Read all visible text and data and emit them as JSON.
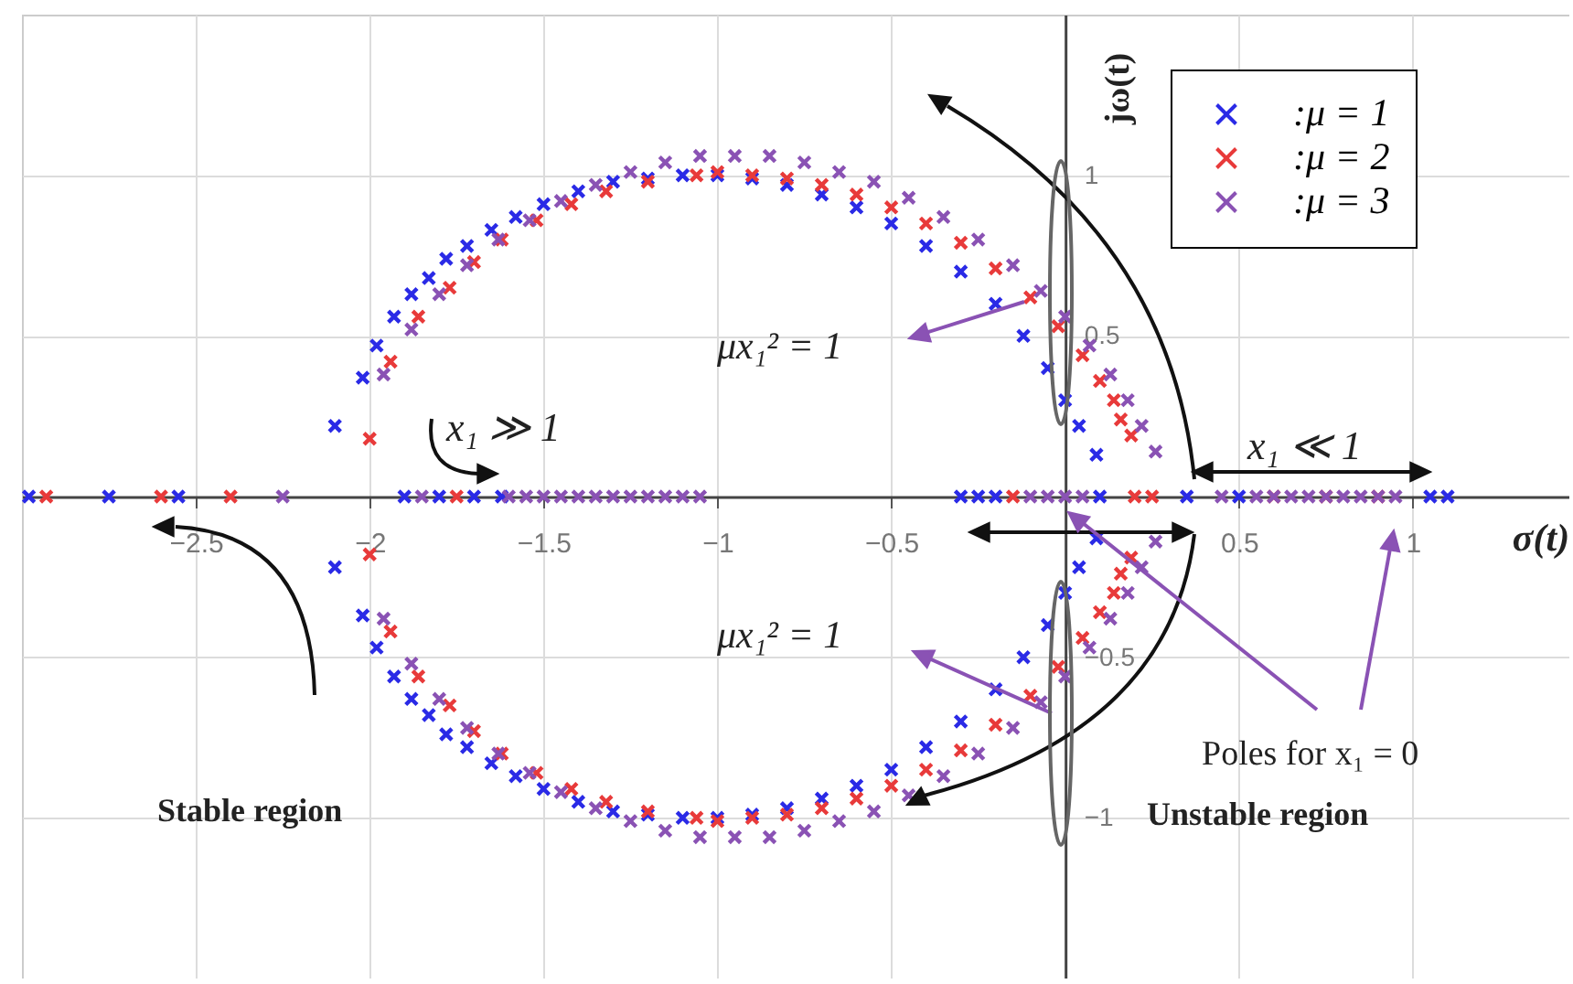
{
  "chart_data": {
    "type": "scatter",
    "xlabel": "σ(t)",
    "ylabel": "jω(t)",
    "xlim": [
      -3,
      1.45
    ],
    "ylim": [
      -1.5,
      1.5
    ],
    "xticks": [
      -2.5,
      -2,
      -1.5,
      -1,
      -0.5,
      0.5,
      1
    ],
    "yticks": [
      -1,
      -0.5,
      0.5,
      1
    ],
    "grid": true,
    "legend": "top right",
    "marker": "cross",
    "annotations": [
      "x₁ ≫ 1",
      "x₁ ≪ 1",
      "μx₁² = 1",
      "μx₁² = 1",
      "Poles for x₁ = 0",
      "Stable region",
      "Unstable region"
    ],
    "series": [
      {
        "name": ":μ = 1",
        "color": "#2a2ae6",
        "x": [
          -2.1,
          -2.02,
          -1.98,
          -1.93,
          -1.88,
          -1.83,
          -1.78,
          -1.72,
          -1.65,
          -1.58,
          -1.5,
          -1.4,
          -1.3,
          -1.2,
          -1.1,
          -1.0,
          -0.9,
          -0.8,
          -0.7,
          -0.6,
          -0.5,
          -0.4,
          -0.3,
          -0.2,
          -0.12,
          -0.05,
          0.0,
          0.04,
          0.09,
          -2.1,
          -2.02,
          -1.98,
          -1.93,
          -1.88,
          -1.83,
          -1.78,
          -1.72,
          -1.65,
          -1.58,
          -1.5,
          -1.4,
          -1.3,
          -1.2,
          -1.1,
          -1.0,
          -0.9,
          -0.8,
          -0.7,
          -0.6,
          -0.5,
          -0.4,
          -0.3,
          -0.2,
          -0.12,
          -0.05,
          0.0,
          0.04,
          0.09,
          -2.98,
          -2.75,
          -2.55,
          -1.9,
          -1.8,
          -1.7,
          -1.62,
          -0.3,
          -0.25,
          -0.2,
          0.1,
          0.35,
          0.5,
          1.05,
          1.1
        ],
        "values": [
          0.22,
          0.37,
          0.47,
          0.56,
          0.63,
          0.68,
          0.74,
          0.78,
          0.83,
          0.87,
          0.91,
          0.95,
          0.98,
          0.99,
          1.0,
          1.0,
          0.99,
          0.97,
          0.94,
          0.9,
          0.85,
          0.78,
          0.7,
          0.6,
          0.5,
          0.4,
          0.3,
          0.22,
          0.13,
          -0.22,
          -0.37,
          -0.47,
          -0.56,
          -0.63,
          -0.68,
          -0.74,
          -0.78,
          -0.83,
          -0.87,
          -0.91,
          -0.95,
          -0.98,
          -0.99,
          -1.0,
          -1.0,
          -0.99,
          -0.97,
          -0.94,
          -0.9,
          -0.85,
          -0.78,
          -0.7,
          -0.6,
          -0.5,
          -0.4,
          -0.3,
          -0.22,
          -0.13,
          0,
          0,
          0,
          0,
          0,
          0,
          0,
          0,
          0,
          0,
          0,
          0,
          0,
          0,
          0
        ]
      },
      {
        "name": ":μ = 2",
        "color": "#e83a3a",
        "x": [
          -2.0,
          -1.94,
          -1.86,
          -1.77,
          -1.7,
          -1.62,
          -1.52,
          -1.42,
          -1.32,
          -1.2,
          -1.06,
          -1.0,
          -0.9,
          -0.8,
          -0.7,
          -0.6,
          -0.5,
          -0.4,
          -0.3,
          -0.2,
          -0.1,
          -0.02,
          0.05,
          0.1,
          0.14,
          0.16,
          0.19,
          -2.0,
          -1.94,
          -1.86,
          -1.77,
          -1.7,
          -1.62,
          -1.52,
          -1.42,
          -1.32,
          -1.2,
          -1.06,
          -1.0,
          -0.9,
          -0.8,
          -0.7,
          -0.6,
          -0.5,
          -0.4,
          -0.3,
          -0.2,
          -0.1,
          -0.02,
          0.05,
          0.1,
          0.14,
          0.16,
          0.19,
          -2.93,
          -2.6,
          -2.4,
          -1.75,
          -0.15,
          0.2,
          0.25,
          0.6,
          0.75,
          0.9
        ],
        "values": [
          0.18,
          0.42,
          0.56,
          0.65,
          0.73,
          0.8,
          0.86,
          0.91,
          0.95,
          0.98,
          1.0,
          1.01,
          1.0,
          0.99,
          0.97,
          0.94,
          0.9,
          0.85,
          0.79,
          0.71,
          0.62,
          0.53,
          0.44,
          0.36,
          0.3,
          0.24,
          0.19,
          -0.18,
          -0.42,
          -0.56,
          -0.65,
          -0.73,
          -0.8,
          -0.86,
          -0.91,
          -0.95,
          -0.98,
          -1.0,
          -1.01,
          -1.0,
          -0.99,
          -0.97,
          -0.94,
          -0.9,
          -0.85,
          -0.79,
          -0.71,
          -0.62,
          -0.53,
          -0.44,
          -0.36,
          -0.3,
          -0.24,
          -0.19,
          0,
          0,
          0,
          0,
          0,
          0,
          0,
          0,
          0,
          0
        ]
      },
      {
        "name": ":μ = 3",
        "color": "#8a52b4",
        "x": [
          -1.96,
          -1.88,
          -1.8,
          -1.72,
          -1.63,
          -1.54,
          -1.45,
          -1.35,
          -1.25,
          -1.15,
          -1.05,
          -0.95,
          -0.85,
          -0.75,
          -0.65,
          -0.55,
          -0.45,
          -0.35,
          -0.25,
          -0.15,
          -0.07,
          0.0,
          0.07,
          0.13,
          0.18,
          0.22,
          0.26,
          -1.96,
          -1.88,
          -1.8,
          -1.72,
          -1.63,
          -1.54,
          -1.45,
          -1.35,
          -1.25,
          -1.15,
          -1.05,
          -0.95,
          -0.85,
          -0.75,
          -0.65,
          -0.55,
          -0.45,
          -0.35,
          -0.25,
          -0.15,
          -0.07,
          0.0,
          0.07,
          0.13,
          0.18,
          0.22,
          0.26,
          -2.25,
          -1.85,
          -1.6,
          -1.55,
          -1.5,
          -1.45,
          -1.4,
          -1.35,
          -1.3,
          -1.25,
          -1.2,
          -1.15,
          -1.1,
          -1.05,
          -0.1,
          -0.05,
          0.0,
          0.05,
          0.45,
          0.55,
          0.6,
          0.65,
          0.7,
          0.75,
          0.8,
          0.85,
          0.9,
          0.95
        ],
        "values": [
          0.38,
          0.52,
          0.63,
          0.72,
          0.8,
          0.86,
          0.92,
          0.97,
          1.01,
          1.04,
          1.06,
          1.06,
          1.06,
          1.04,
          1.01,
          0.98,
          0.93,
          0.87,
          0.8,
          0.72,
          0.64,
          0.56,
          0.47,
          0.38,
          0.3,
          0.22,
          0.14,
          -0.38,
          -0.52,
          -0.63,
          -0.72,
          -0.8,
          -0.86,
          -0.92,
          -0.97,
          -1.01,
          -1.04,
          -1.06,
          -1.06,
          -1.06,
          -1.04,
          -1.01,
          -0.98,
          -0.93,
          -0.87,
          -0.8,
          -0.72,
          -0.64,
          -0.56,
          -0.47,
          -0.38,
          -0.3,
          -0.22,
          -0.14,
          0,
          0,
          0,
          0,
          0,
          0,
          0,
          0,
          0,
          0,
          0,
          0,
          0,
          0,
          0,
          0,
          0,
          0,
          0,
          0,
          0,
          0,
          0,
          0,
          0,
          0,
          0,
          0
        ]
      }
    ]
  }
}
